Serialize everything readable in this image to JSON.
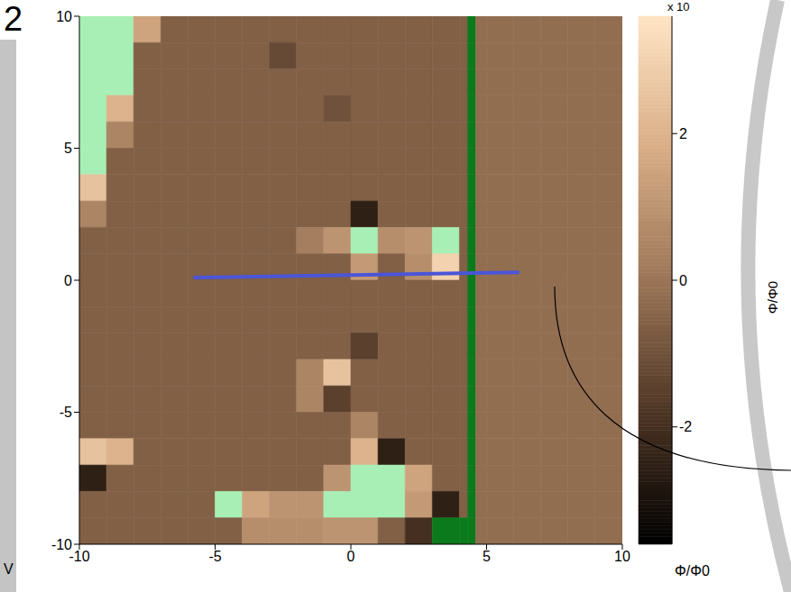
{
  "chart_data": {
    "type": "heatmap",
    "panel": "2",
    "xlabel": "V",
    "xlim": [
      -10,
      10
    ],
    "ylim": [
      -10,
      10
    ],
    "xticks": [
      -10,
      -5,
      0,
      5,
      10
    ],
    "yticks": [
      -10,
      -5,
      0,
      5,
      10
    ],
    "x_edges": [
      -10,
      -9,
      -8,
      -7,
      -6,
      -5,
      -4,
      -3,
      -2,
      -1,
      0,
      1,
      2,
      3,
      4,
      4.3,
      4.6,
      5,
      6,
      7,
      8,
      9,
      10
    ],
    "y_edges": [
      10,
      9,
      8,
      7,
      6,
      5,
      4,
      3,
      2,
      1,
      0,
      -1,
      -2,
      -3,
      -4,
      -5,
      -6,
      -7,
      -8,
      -9,
      -10
    ],
    "cells": [
      [
        4,
        4,
        1.5,
        -0.6,
        -0.6,
        -0.6,
        -0.6,
        -0.6,
        -0.6,
        -0.6,
        -0.6,
        -0.6,
        -0.6,
        -0.6,
        -0.6,
        -4,
        -0.2,
        -0.2,
        -0.2,
        -0.2,
        -0.2,
        -0.2
      ],
      [
        4,
        4,
        -0.6,
        -0.6,
        -0.6,
        -0.6,
        -0.6,
        -1.2,
        -0.6,
        -0.6,
        -0.6,
        -0.6,
        -0.6,
        -0.6,
        -0.6,
        -4,
        -0.2,
        -0.2,
        -0.2,
        -0.2,
        -0.2,
        -0.2
      ],
      [
        4,
        4,
        -0.6,
        -0.6,
        -0.6,
        -0.6,
        -0.6,
        -0.6,
        -0.6,
        -0.6,
        -0.6,
        -0.6,
        -0.6,
        -0.6,
        -0.6,
        -4,
        -0.2,
        -0.2,
        -0.2,
        -0.2,
        -0.2,
        -0.2
      ],
      [
        4,
        2,
        -0.6,
        -0.6,
        -0.6,
        -0.6,
        -0.6,
        -0.6,
        -0.6,
        -1,
        -0.6,
        -0.6,
        -0.6,
        -0.6,
        -0.6,
        -4,
        -0.2,
        -0.2,
        -0.2,
        -0.2,
        -0.2,
        -0.2
      ],
      [
        4,
        0.5,
        -0.6,
        -0.6,
        -0.6,
        -0.6,
        -0.6,
        -0.6,
        -0.6,
        -0.6,
        -0.6,
        -0.6,
        -0.6,
        -0.6,
        -0.6,
        -4,
        -0.2,
        -0.2,
        -0.2,
        -0.2,
        -0.2,
        -0.2
      ],
      [
        4,
        -0.6,
        -0.6,
        -0.6,
        -0.6,
        -0.6,
        -0.6,
        -0.6,
        -0.6,
        -0.6,
        -0.6,
        -0.6,
        -0.6,
        -0.6,
        -0.6,
        -4,
        -0.2,
        -0.2,
        -0.2,
        -0.2,
        -0.2,
        -0.2
      ],
      [
        2.5,
        -0.6,
        -0.6,
        -0.6,
        -0.6,
        -0.6,
        -0.6,
        -0.6,
        -0.6,
        -0.6,
        -0.6,
        -0.6,
        -0.6,
        -0.6,
        -0.6,
        -4,
        -0.2,
        -0.2,
        -0.2,
        -0.2,
        -0.2,
        -0.2
      ],
      [
        0.5,
        -0.6,
        -0.6,
        -0.6,
        -0.6,
        -0.6,
        -0.6,
        -0.6,
        -0.6,
        -0.6,
        -2.5,
        -0.6,
        -0.6,
        -0.6,
        -0.6,
        -4,
        -0.2,
        -0.2,
        -0.2,
        -0.2,
        -0.2,
        -0.2
      ],
      [
        -0.6,
        -0.6,
        -0.6,
        -0.6,
        -0.6,
        -0.6,
        -0.6,
        -0.6,
        0.3,
        1,
        4,
        0.8,
        1,
        4,
        -0.6,
        -4,
        -0.2,
        -0.2,
        -0.2,
        -0.2,
        -0.2,
        -0.2
      ],
      [
        -0.6,
        -0.6,
        -0.6,
        -0.6,
        -0.6,
        -0.6,
        -0.6,
        -0.6,
        -0.6,
        -0.6,
        1.2,
        -0.6,
        0.8,
        3,
        -0.6,
        -4,
        -0.2,
        -0.2,
        -0.2,
        -0.2,
        -0.2,
        -0.2
      ],
      [
        -0.6,
        -0.6,
        -0.6,
        -0.6,
        -0.6,
        -0.6,
        -0.6,
        -0.6,
        -0.6,
        -0.6,
        -0.6,
        -0.6,
        -0.6,
        -0.6,
        -0.6,
        -4,
        -0.2,
        -0.2,
        -0.2,
        -0.2,
        -0.2,
        -0.2
      ],
      [
        -0.6,
        -0.6,
        -0.6,
        -0.6,
        -0.6,
        -0.6,
        -0.6,
        -0.6,
        -0.6,
        -0.6,
        -0.6,
        -0.6,
        -0.6,
        -0.6,
        -0.6,
        -4,
        -0.2,
        -0.2,
        -0.2,
        -0.2,
        -0.2,
        -0.2
      ],
      [
        -0.6,
        -0.6,
        -0.6,
        -0.6,
        -0.6,
        -0.6,
        -0.6,
        -0.6,
        -0.6,
        -0.6,
        -1.5,
        -0.6,
        -0.6,
        -0.6,
        -0.6,
        -4,
        -0.2,
        -0.2,
        -0.2,
        -0.2,
        -0.2,
        -0.2
      ],
      [
        -0.6,
        -0.6,
        -0.6,
        -0.6,
        -0.6,
        -0.6,
        -0.6,
        -0.6,
        0.5,
        2.5,
        -0.6,
        -0.6,
        -0.6,
        -0.6,
        -0.6,
        -4,
        -0.2,
        -0.2,
        -0.2,
        -0.2,
        -0.2,
        -0.2
      ],
      [
        -0.6,
        -0.6,
        -0.6,
        -0.6,
        -0.6,
        -0.6,
        -0.6,
        -0.6,
        0.5,
        -1.5,
        -0.6,
        -0.6,
        -0.6,
        -0.6,
        -0.6,
        -4,
        -0.2,
        -0.2,
        -0.2,
        -0.2,
        -0.2,
        -0.2
      ],
      [
        -0.6,
        -0.6,
        -0.6,
        -0.6,
        -0.6,
        -0.6,
        -0.6,
        -0.6,
        -0.6,
        -0.6,
        0.5,
        -0.6,
        -0.6,
        -0.6,
        -0.6,
        -4,
        -0.2,
        -0.2,
        -0.2,
        -0.2,
        -0.2,
        -0.2
      ],
      [
        2.5,
        2,
        -0.6,
        -0.6,
        -0.6,
        -0.6,
        -0.6,
        -0.6,
        -0.6,
        -0.6,
        2,
        -2.5,
        -0.6,
        -0.6,
        -0.6,
        -4,
        -0.2,
        -0.2,
        -0.2,
        -0.2,
        -0.2,
        -0.2
      ],
      [
        -2.5,
        -0.6,
        -0.6,
        -0.6,
        -0.6,
        -0.6,
        -0.6,
        -0.6,
        -0.6,
        1,
        4,
        4,
        1.5,
        -0.6,
        -0.6,
        -4,
        -0.2,
        -0.2,
        -0.2,
        -0.2,
        -0.2,
        -0.2
      ],
      [
        -0.6,
        -0.6,
        -0.6,
        -0.6,
        -0.6,
        4,
        1.5,
        1,
        1,
        4,
        4,
        4,
        1.2,
        -2.5,
        -0.6,
        -4,
        -0.2,
        -0.2,
        -0.2,
        -0.2,
        -0.2,
        -0.2
      ],
      [
        -0.6,
        -0.6,
        -0.6,
        -0.6,
        -0.6,
        -0.6,
        0.8,
        0.8,
        0.8,
        1,
        1,
        -0.6,
        -2,
        -4,
        -4,
        -4,
        -0.2,
        -0.2,
        -0.2,
        -0.2,
        -0.2,
        -0.2
      ]
    ],
    "colorbar": {
      "range": [
        -3.6,
        3.6
      ],
      "ticks": [
        -2,
        0,
        2
      ],
      "label": "Φ/Φ0",
      "multiplier": "x 10"
    },
    "line": {
      "x": [
        -5.8,
        6.2
      ],
      "y": [
        0.1,
        0.3
      ],
      "color": "#4a55d8"
    },
    "inset_label": "Φ/Φ0"
  }
}
